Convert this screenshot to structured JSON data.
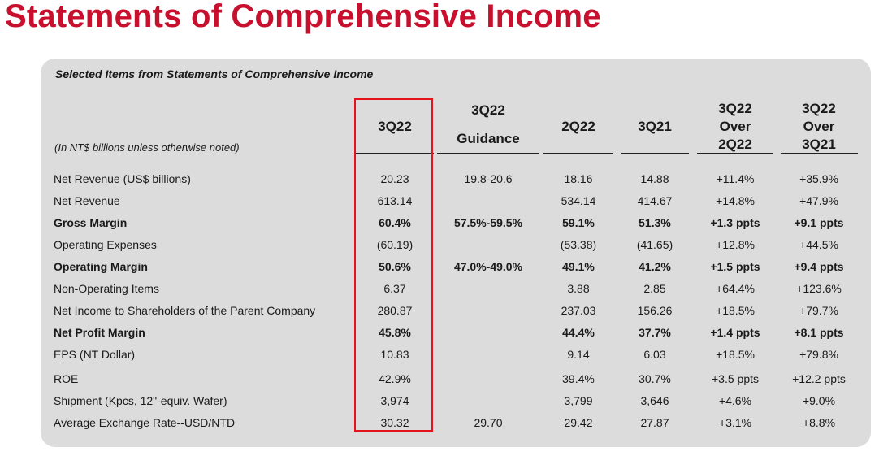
{
  "title": "Statements of Comprehensive Income",
  "subtitle": "Selected Items from Statements of Comprehensive Income",
  "units_note": "(In NT$ billions unless otherwise noted)",
  "accent_color": "#c8102e",
  "highlight_color": "#e8121b",
  "columns": [
    {
      "lines": [
        "3Q22"
      ]
    },
    {
      "lines": [
        "3Q22",
        "Guidance"
      ]
    },
    {
      "lines": [
        "2Q22"
      ]
    },
    {
      "lines": [
        "3Q21"
      ]
    },
    {
      "lines": [
        "3Q22",
        "Over",
        "2Q22"
      ]
    },
    {
      "lines": [
        "3Q22",
        "Over",
        "3Q21"
      ]
    }
  ],
  "rows": [
    {
      "label": "Net Revenue (US$ billions)",
      "bold": false,
      "values": [
        "20.23",
        "19.8-20.6",
        "18.16",
        "14.88",
        "+11.4%",
        "+35.9%"
      ]
    },
    {
      "label": "Net Revenue",
      "bold": false,
      "values": [
        "613.14",
        "",
        "534.14",
        "414.67",
        "+14.8%",
        "+47.9%"
      ]
    },
    {
      "label": "Gross Margin",
      "bold": true,
      "values": [
        "60.4%",
        "57.5%-59.5%",
        "59.1%",
        "51.3%",
        "+1.3 ppts",
        "+9.1 ppts"
      ]
    },
    {
      "label": "Operating Expenses",
      "bold": false,
      "values": [
        "(60.19)",
        "",
        "(53.38)",
        "(41.65)",
        "+12.8%",
        "+44.5%"
      ]
    },
    {
      "label": "Operating Margin",
      "bold": true,
      "values": [
        "50.6%",
        "47.0%-49.0%",
        "49.1%",
        "41.2%",
        "+1.5 ppts",
        "+9.4 ppts"
      ]
    },
    {
      "label": "Non-Operating Items",
      "bold": false,
      "values": [
        "6.37",
        "",
        "3.88",
        "2.85",
        "+64.4%",
        "+123.6%"
      ]
    },
    {
      "label": "Net Income to Shareholders of the Parent Company",
      "bold": false,
      "values": [
        "280.87",
        "",
        "237.03",
        "156.26",
        "+18.5%",
        "+79.7%"
      ]
    },
    {
      "label": "Net Profit Margin",
      "bold": true,
      "values": [
        "45.8%",
        "",
        "44.4%",
        "37.7%",
        "+1.4 ppts",
        "+8.1 ppts"
      ]
    },
    {
      "label": "EPS (NT Dollar)",
      "bold": false,
      "values": [
        "10.83",
        "",
        "9.14",
        "6.03",
        "+18.5%",
        "+79.8%"
      ]
    },
    {
      "label": "ROE",
      "bold": false,
      "values": [
        "42.9%",
        "",
        "39.4%",
        "30.7%",
        "+3.5 ppts",
        "+12.2 ppts"
      ]
    },
    {
      "label": "Shipment (Kpcs, 12\"-equiv. Wafer)",
      "bold": false,
      "values": [
        "3,974",
        "",
        "3,799",
        "3,646",
        "+4.6%",
        "+9.0%"
      ]
    },
    {
      "label": "Average Exchange Rate--USD/NTD",
      "bold": false,
      "values": [
        "30.32",
        "29.70",
        "29.42",
        "27.87",
        "+3.1%",
        "+8.8%"
      ]
    }
  ]
}
